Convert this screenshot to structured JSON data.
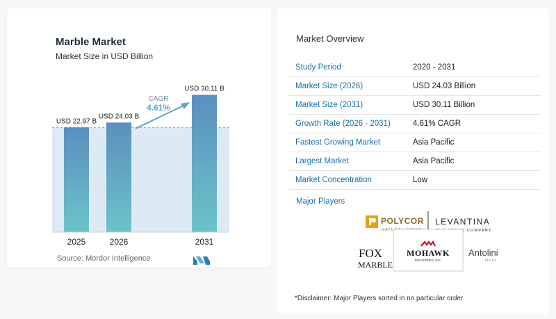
{
  "chart_data": {
    "type": "bar",
    "title": "Marble Market",
    "subtitle": "Market Size in USD Billion",
    "categories": [
      "2025",
      "2026",
      "2031"
    ],
    "values": [
      22.97,
      24.03,
      30.11
    ],
    "data_labels": [
      "USD 22.97 B",
      "USD 24.03 B",
      "USD 30.11 B"
    ],
    "cagr_label": "CAGR",
    "cagr_value": "4.61%",
    "ylim": [
      0,
      32
    ],
    "grid": false
  },
  "source": "Source:  Mordor Intelligence",
  "overview": {
    "title": "Market Overview",
    "rows": [
      {
        "label": "Study Period",
        "value": "2020 - 2031"
      },
      {
        "label": "Market Size (2026)",
        "value": "USD 24.03 Billion"
      },
      {
        "label": "Market Size (2031)",
        "value": "USD 30.11 Billion"
      },
      {
        "label": "Growth Rate (2026 - 2031)",
        "value": "4.61% CAGR"
      },
      {
        "label": "Fastest Growing Market",
        "value": "Asia Pacific"
      },
      {
        "label": "Largest Market",
        "value": "Asia Pacific"
      },
      {
        "label": "Market Concentration",
        "value": "Low"
      }
    ],
    "major_players_title": "Major Players",
    "players": {
      "polycor": "POLYCOR",
      "polycor_sub": "NATURAL STONE",
      "levantina": "LEVANTINA",
      "levantina_sub": "THE STONE COMPANY",
      "fox_line1": "FOX",
      "fox_line2": "MARBLE",
      "mohawk": "MOHAWK",
      "mohawk_sub": "INDUSTRIES, INC.",
      "antolini": "Antolini",
      "antolini_sub": "ITALY"
    },
    "disclaimer": "*Disclaimer: Major Players sorted in no particular order"
  },
  "colors": {
    "bar_top": "#5b8fbe",
    "bar_bottom": "#6cc3c9",
    "accent_blue": "#1f6fa5",
    "arrow": "#5aa7c9",
    "band": "#dde9f4"
  }
}
